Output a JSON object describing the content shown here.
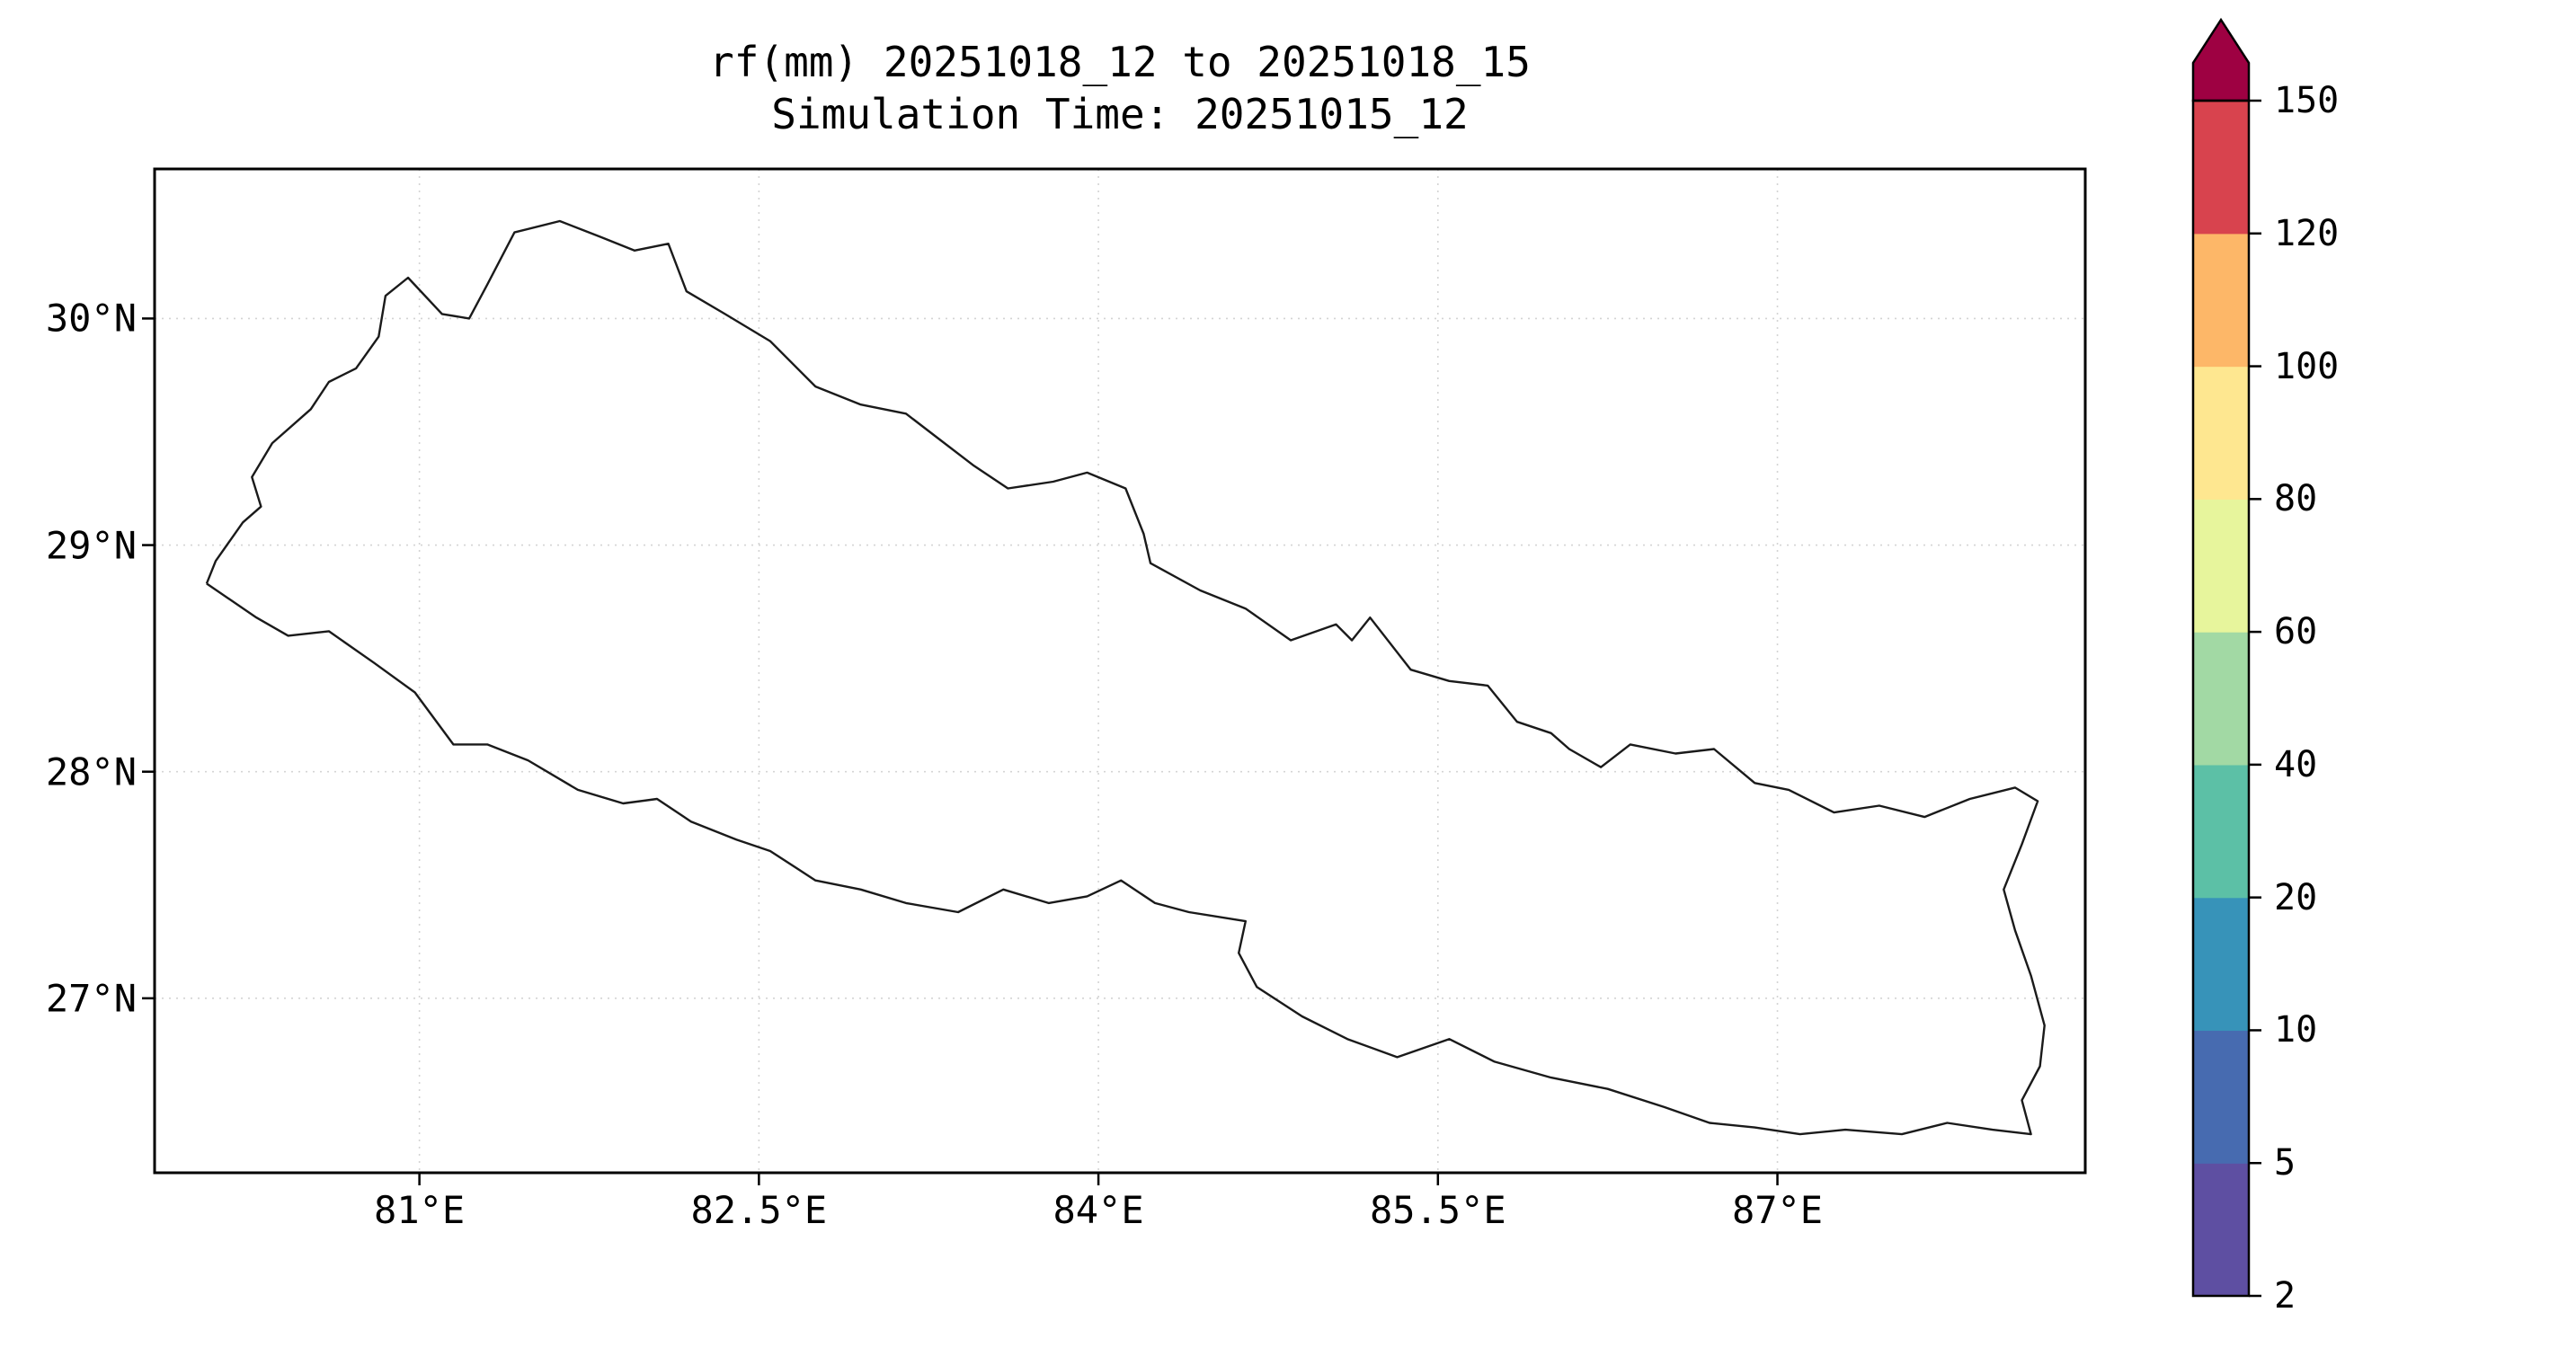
{
  "figure": {
    "title_line1": "rf(mm) 20251018_12 to 20251018_15",
    "title_line2": "Simulation Time: 20251015_12",
    "background_color": "#ffffff",
    "outline_color": "#1a1a1a",
    "grid_color": "#d4d4d4",
    "axis_color": "#000000"
  },
  "chart_data": {
    "type": "heatmap",
    "title": "rf(mm) 20251018_12 to 20251018_15",
    "subtitle": "Simulation Time: 20251015_12",
    "variable": "rf",
    "units": "mm",
    "valid_period_start": "20251018_12",
    "valid_period_end": "20251018_15",
    "simulation_time": "20251015_12",
    "grid": true,
    "x_axis": {
      "range": [
        79.83,
        88.36
      ],
      "ticks": [
        {
          "value": 81.0,
          "label": "81°E"
        },
        {
          "value": 82.5,
          "label": "82.5°E"
        },
        {
          "value": 84.0,
          "label": "84°E"
        },
        {
          "value": 85.5,
          "label": "85.5°E"
        },
        {
          "value": 87.0,
          "label": "87°E"
        }
      ]
    },
    "y_axis": {
      "range": [
        26.23,
        30.66
      ],
      "ticks": [
        {
          "value": 27.0,
          "label": "27°N"
        },
        {
          "value": 28.0,
          "label": "28°N"
        },
        {
          "value": 29.0,
          "label": "29°N"
        },
        {
          "value": 30.0,
          "label": "30°N"
        }
      ]
    },
    "shaded_rainfall_cells": [],
    "colorbar": {
      "orientation": "vertical",
      "levels": [
        2,
        5,
        10,
        20,
        40,
        60,
        80,
        100,
        120,
        150
      ],
      "tick_labels": [
        "2",
        "5",
        "10",
        "20",
        "40",
        "60",
        "80",
        "100",
        "120",
        "150"
      ],
      "segment_colors_bottom_to_top": [
        "#5e4fa2",
        "#476bb0",
        "#3793b9",
        "#5cc0a6",
        "#a2d9a4",
        "#e7f59c",
        "#fee790",
        "#fdb768",
        "#d8434e"
      ],
      "extend_above_color": "#9e0142"
    },
    "boundary_outline_lonlat": [
      [
        80.06,
        28.83
      ],
      [
        80.1,
        28.93
      ],
      [
        80.22,
        29.1
      ],
      [
        80.3,
        29.17
      ],
      [
        80.26,
        29.3
      ],
      [
        80.35,
        29.45
      ],
      [
        80.52,
        29.6
      ],
      [
        80.6,
        29.72
      ],
      [
        80.72,
        29.78
      ],
      [
        80.82,
        29.92
      ],
      [
        80.85,
        30.1
      ],
      [
        80.95,
        30.18
      ],
      [
        81.1,
        30.02
      ],
      [
        81.22,
        30.0
      ],
      [
        81.3,
        30.15
      ],
      [
        81.42,
        30.38
      ],
      [
        81.62,
        30.43
      ],
      [
        81.8,
        30.36
      ],
      [
        81.95,
        30.3
      ],
      [
        82.1,
        30.33
      ],
      [
        82.18,
        30.12
      ],
      [
        82.35,
        30.02
      ],
      [
        82.55,
        29.9
      ],
      [
        82.75,
        29.7
      ],
      [
        82.95,
        29.62
      ],
      [
        83.15,
        29.58
      ],
      [
        83.28,
        29.48
      ],
      [
        83.45,
        29.35
      ],
      [
        83.6,
        29.25
      ],
      [
        83.8,
        29.28
      ],
      [
        83.95,
        29.32
      ],
      [
        84.12,
        29.25
      ],
      [
        84.2,
        29.05
      ],
      [
        84.23,
        28.92
      ],
      [
        84.45,
        28.8
      ],
      [
        84.65,
        28.72
      ],
      [
        84.85,
        28.58
      ],
      [
        85.05,
        28.65
      ],
      [
        85.12,
        28.58
      ],
      [
        85.2,
        28.68
      ],
      [
        85.38,
        28.45
      ],
      [
        85.55,
        28.4
      ],
      [
        85.72,
        28.38
      ],
      [
        85.85,
        28.22
      ],
      [
        86.0,
        28.17
      ],
      [
        86.08,
        28.1
      ],
      [
        86.22,
        28.02
      ],
      [
        86.35,
        28.12
      ],
      [
        86.55,
        28.08
      ],
      [
        86.72,
        28.1
      ],
      [
        86.9,
        27.95
      ],
      [
        87.05,
        27.92
      ],
      [
        87.25,
        27.82
      ],
      [
        87.45,
        27.85
      ],
      [
        87.65,
        27.8
      ],
      [
        87.85,
        27.88
      ],
      [
        88.05,
        27.93
      ],
      [
        88.15,
        27.87
      ],
      [
        88.08,
        27.68
      ],
      [
        88.0,
        27.48
      ],
      [
        88.05,
        27.3
      ],
      [
        88.12,
        27.1
      ],
      [
        88.18,
        26.88
      ],
      [
        88.16,
        26.7
      ],
      [
        88.08,
        26.55
      ],
      [
        88.12,
        26.4
      ],
      [
        87.95,
        26.42
      ],
      [
        87.75,
        26.45
      ],
      [
        87.55,
        26.4
      ],
      [
        87.3,
        26.42
      ],
      [
        87.1,
        26.4
      ],
      [
        86.9,
        26.43
      ],
      [
        86.7,
        26.45
      ],
      [
        86.5,
        26.52
      ],
      [
        86.25,
        26.6
      ],
      [
        86.0,
        26.65
      ],
      [
        85.75,
        26.72
      ],
      [
        85.55,
        26.82
      ],
      [
        85.32,
        26.74
      ],
      [
        85.1,
        26.82
      ],
      [
        84.9,
        26.92
      ],
      [
        84.7,
        27.05
      ],
      [
        84.62,
        27.2
      ],
      [
        84.65,
        27.34
      ],
      [
        84.4,
        27.38
      ],
      [
        84.25,
        27.42
      ],
      [
        84.1,
        27.52
      ],
      [
        83.95,
        27.45
      ],
      [
        83.78,
        27.42
      ],
      [
        83.58,
        27.48
      ],
      [
        83.38,
        27.38
      ],
      [
        83.15,
        27.42
      ],
      [
        82.95,
        27.48
      ],
      [
        82.75,
        27.52
      ],
      [
        82.55,
        27.65
      ],
      [
        82.4,
        27.7
      ],
      [
        82.2,
        27.78
      ],
      [
        82.05,
        27.88
      ],
      [
        81.9,
        27.86
      ],
      [
        81.7,
        27.92
      ],
      [
        81.48,
        28.05
      ],
      [
        81.3,
        28.12
      ],
      [
        81.15,
        28.12
      ],
      [
        80.98,
        28.35
      ],
      [
        80.8,
        28.48
      ],
      [
        80.6,
        28.62
      ],
      [
        80.42,
        28.6
      ],
      [
        80.28,
        28.68
      ],
      [
        80.06,
        28.83
      ]
    ]
  }
}
